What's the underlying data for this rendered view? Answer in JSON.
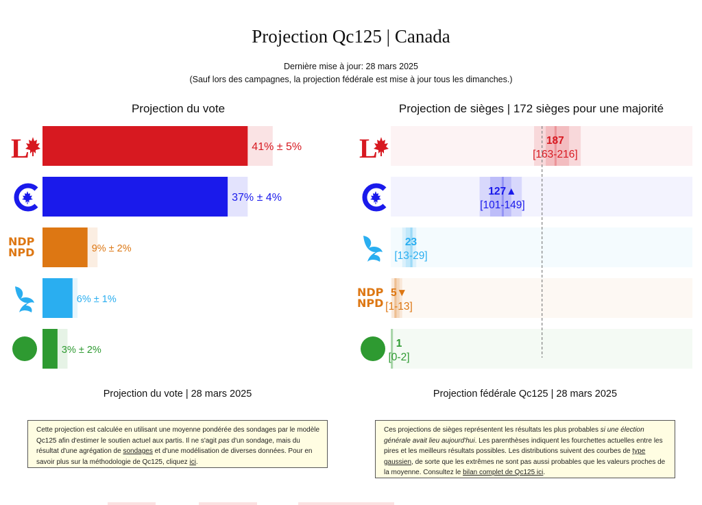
{
  "header": {
    "title": "Projection Qc125 | Canada",
    "updated": "Dernière mise à jour: 28 mars 2025",
    "note": "(Sauf lors des campagnes, la projection fédérale est mise à jour tous les dimanches.)"
  },
  "vote_panel": {
    "title": "Projection du vote",
    "footer": "Projection du vote | 28 mars 2025",
    "note_parts": [
      "Cette projection est calculée en utilisant une moyenne pondérée des sondages par le modèle Qc125 afin d'estimer le soutien actuel aux partis. Il ne s'agit ",
      "pas",
      " d'un sondage, mais du résultat d'une agrégation de ",
      "sondages",
      " et d'une modélisation de diverses données. Pour en savoir plus sur la méthodologie de Qc125, cliquez ",
      "ici",
      "."
    ]
  },
  "seat_panel": {
    "title": "Projection de sièges | 172 sièges pour une majorité",
    "footer": "Projection fédérale Qc125 | 28 mars 2025",
    "note_parts": [
      "Ces projections de sièges représentent les résultats les plus probables ",
      "si une élection générale avait lieu aujourd'hui",
      ". Les parenthèses indiquent les fourchettes actuelles entre les pires et les meilleurs résultats possibles. Les distributions suivent des courbes de ",
      "type gaussien",
      ", de sorte que les extrêmes ne sont pas aussi probables que les valeurs proches de la moyenne. Consultez le ",
      "bilan complet de Qc125 ici",
      "."
    ]
  },
  "logos": {
    "ndp_line1": "NDP",
    "ndp_line2": "NPD",
    "liberal_letter": "L"
  },
  "colors": {
    "liberal": "#d71920",
    "conservative": "#1a1aeb",
    "ndp": "#dd7713",
    "bloc": "#2aaef0",
    "green": "#2e9a31",
    "note_bg": "#fffde2"
  },
  "chart_data": [
    {
      "type": "bar",
      "orientation": "horizontal",
      "title": "Projection du vote",
      "categories": [
        "Libéral",
        "Conservateur",
        "NPD",
        "Bloc Québécois",
        "Vert"
      ],
      "values": [
        41,
        37,
        9,
        6,
        3
      ],
      "margins": [
        5,
        4,
        2,
        1,
        2
      ],
      "labels": [
        "41% ± 5%",
        "37% ± 4%",
        "9% ± 2%",
        "6% ± 1%",
        "3% ± 2%"
      ],
      "unit": "%",
      "xlim": [
        0,
        55
      ],
      "colors": [
        "#d71920",
        "#1a1aeb",
        "#dd7713",
        "#2aaef0",
        "#2e9a31"
      ]
    },
    {
      "type": "bar",
      "orientation": "horizontal",
      "title": "Projection de sièges | 172 sièges pour une majorité",
      "categories": [
        "Libéral",
        "Conservateur",
        "Bloc Québécois",
        "NPD",
        "Vert"
      ],
      "values": [
        187,
        127,
        23,
        5,
        1
      ],
      "ranges": [
        [
          163,
          216
        ],
        [
          101,
          149
        ],
        [
          13,
          29
        ],
        [
          1,
          13
        ],
        [
          0,
          2
        ]
      ],
      "value_labels": [
        "187",
        "127▲",
        "23",
        "5▼",
        "1"
      ],
      "range_labels": [
        "[163-216]",
        "[101-149]",
        "[13-29]",
        "[1-13]",
        "[0-2]"
      ],
      "majority": 172,
      "xlim": [
        0,
        343
      ],
      "colors": [
        "#d71920",
        "#1a1aeb",
        "#2aaef0",
        "#dd7713",
        "#2e9a31"
      ]
    }
  ]
}
